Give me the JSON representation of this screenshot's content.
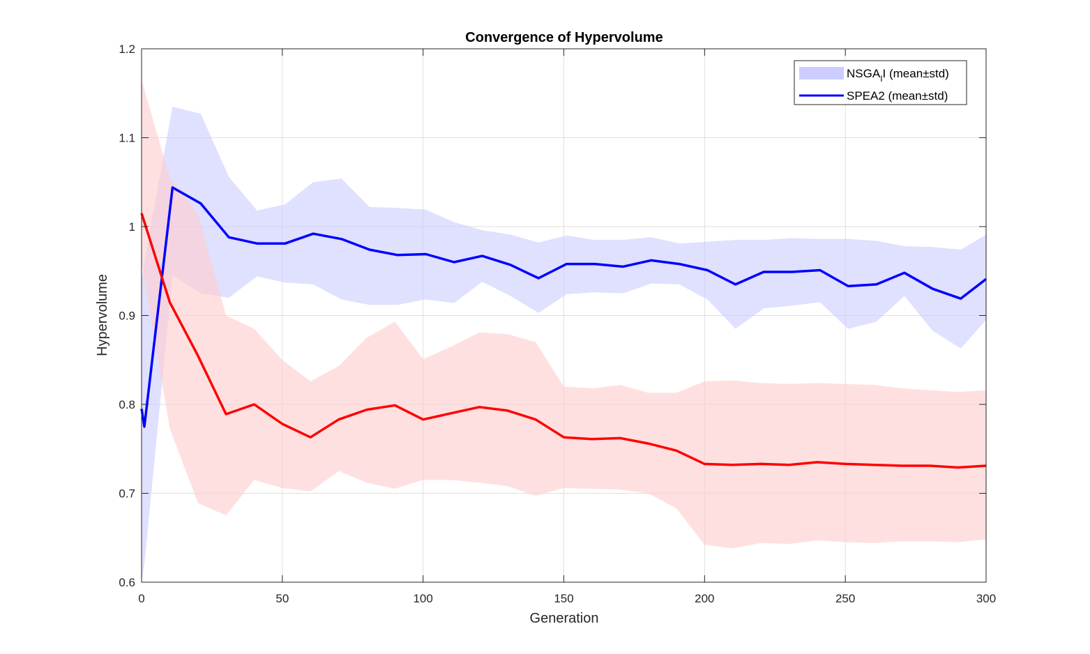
{
  "chart_data": {
    "type": "line",
    "title": "Convergence of Hypervolume",
    "xlabel": "Generation",
    "ylabel": "Hypervolume",
    "xlim": [
      0,
      300
    ],
    "ylim": [
      0.6,
      1.2
    ],
    "xticks": [
      0,
      50,
      100,
      150,
      200,
      250,
      300
    ],
    "yticks": [
      0.6,
      0.7,
      0.8,
      0.9,
      1,
      1.1,
      1.2
    ],
    "xtick_labels": [
      "0",
      "50",
      "100",
      "150",
      "200",
      "250",
      "300"
    ],
    "ytick_labels": [
      "0.6",
      "0.7",
      "0.8",
      "0.9",
      "1",
      "1.1",
      "1.2"
    ],
    "grid": true,
    "legend_position": "top-right",
    "legend": [
      {
        "label_main": "NSGA",
        "label_sub": "I",
        "label_rest": "I (mean±std)",
        "swatch": "patch",
        "color": "#ccccff"
      },
      {
        "label_main": "SPEA2 (mean±std)",
        "label_sub": "",
        "label_rest": "",
        "swatch": "line",
        "color": "#0000ff"
      }
    ],
    "series": [
      {
        "line_color": "#0000ff",
        "band_color": "#ccccff",
        "x": [
          0,
          1,
          11,
          21,
          31,
          41,
          51,
          61,
          71,
          81,
          91,
          101,
          111,
          121,
          131,
          141,
          151,
          161,
          171,
          181,
          191,
          201,
          211,
          221,
          231,
          241,
          251,
          261,
          271,
          281,
          291,
          300
        ],
        "mean": [
          0.795,
          0.775,
          1.044,
          1.026,
          0.988,
          0.981,
          0.981,
          0.992,
          0.986,
          0.974,
          0.968,
          0.969,
          0.96,
          0.967,
          0.957,
          0.942,
          0.958,
          0.958,
          0.955,
          0.962,
          0.958,
          0.951,
          0.935,
          0.949,
          0.949,
          0.951,
          0.933,
          0.935,
          0.948,
          0.93,
          0.919,
          0.941
        ],
        "upper": [
          0.94,
          0.96,
          1.135,
          1.127,
          1.056,
          1.018,
          1.025,
          1.05,
          1.054,
          1.022,
          1.021,
          1.019,
          1.005,
          0.996,
          0.991,
          0.982,
          0.99,
          0.985,
          0.985,
          0.988,
          0.981,
          0.983,
          0.985,
          0.985,
          0.987,
          0.986,
          0.986,
          0.984,
          0.978,
          0.977,
          0.974,
          0.991
        ],
        "lower": [
          0.6,
          0.62,
          0.945,
          0.925,
          0.92,
          0.944,
          0.937,
          0.935,
          0.918,
          0.912,
          0.912,
          0.918,
          0.914,
          0.938,
          0.922,
          0.903,
          0.924,
          0.926,
          0.925,
          0.936,
          0.935,
          0.918,
          0.885,
          0.908,
          0.911,
          0.915,
          0.885,
          0.893,
          0.922,
          0.883,
          0.863,
          0.895
        ]
      },
      {
        "line_color": "#ff0000",
        "band_color": "#ffcccc",
        "x": [
          0,
          10,
          20,
          30,
          40,
          50,
          60,
          70,
          80,
          90,
          100,
          110,
          120,
          130,
          140,
          150,
          160,
          170,
          180,
          190,
          200,
          210,
          220,
          230,
          240,
          250,
          260,
          270,
          280,
          290,
          300
        ],
        "mean": [
          1.015,
          0.915,
          0.855,
          0.789,
          0.8,
          0.778,
          0.763,
          0.783,
          0.794,
          0.799,
          0.783,
          0.79,
          0.797,
          0.793,
          0.783,
          0.763,
          0.761,
          0.762,
          0.756,
          0.748,
          0.733,
          0.732,
          0.733,
          0.732,
          0.735,
          0.733,
          0.732,
          0.731,
          0.731,
          0.729,
          0.731
        ],
        "upper": [
          1.165,
          1.055,
          1.015,
          0.9,
          0.885,
          0.85,
          0.826,
          0.843,
          0.875,
          0.893,
          0.851,
          0.865,
          0.881,
          0.879,
          0.87,
          0.82,
          0.818,
          0.822,
          0.813,
          0.813,
          0.826,
          0.827,
          0.824,
          0.823,
          0.824,
          0.823,
          0.822,
          0.818,
          0.816,
          0.814,
          0.816
        ],
        "lower": [
          0.96,
          0.773,
          0.689,
          0.675,
          0.715,
          0.706,
          0.702,
          0.725,
          0.712,
          0.705,
          0.715,
          0.715,
          0.712,
          0.708,
          0.697,
          0.706,
          0.705,
          0.704,
          0.7,
          0.683,
          0.642,
          0.638,
          0.644,
          0.643,
          0.647,
          0.645,
          0.644,
          0.646,
          0.646,
          0.645,
          0.648
        ]
      }
    ]
  }
}
